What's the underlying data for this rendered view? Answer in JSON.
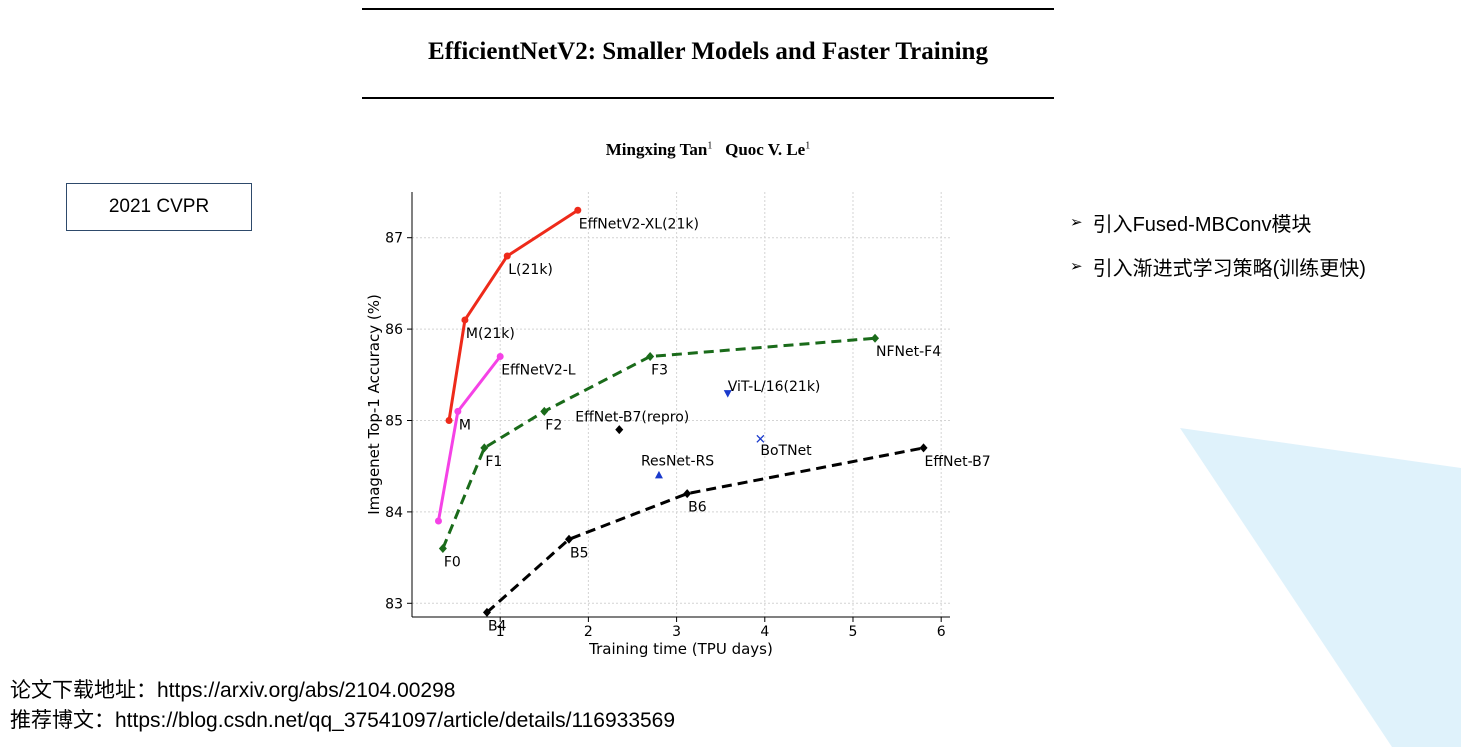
{
  "paper": {
    "title": "EfficientNetV2: Smaller Models and Faster Training",
    "author1": "Mingxing Tan",
    "author1_sup": "1",
    "author2": "Quoc V. Le",
    "author2_sup": "1"
  },
  "venue": "2021 CVPR",
  "bullets": [
    "引入Fused-MBConv模块",
    "引入渐进式学习策略(训练更快)"
  ],
  "bullet_marker": "➢",
  "links": {
    "paper": "论文下载地址：https://arxiv.org/abs/2104.00298",
    "blog": "推荐博文：https://blog.csdn.net/qq_37541097/article/details/116933569"
  },
  "colors": {
    "effnetv2_21k": "#ee2a1a",
    "effnetv2": "#f542e6",
    "nfnet": "#1a6b1a",
    "effnet": "#000000",
    "vit_botnet_resnetrs": "#1a3acc",
    "decoration": "#dff2fb"
  },
  "chart_data": {
    "type": "line",
    "xlabel": "Training time (TPU days)",
    "ylabel": "Imagenet Top-1 Accuracy (%)",
    "xlim": [
      0,
      6.1
    ],
    "ylim": [
      82.85,
      87.5
    ],
    "xticks": [
      1,
      2,
      3,
      4,
      5,
      6
    ],
    "yticks": [
      83,
      84,
      85,
      86,
      87
    ],
    "grid": true,
    "series": [
      {
        "color": "#ee2a1a",
        "line": "solid",
        "marker": "circle",
        "x": [
          0.42,
          0.6,
          1.08,
          1.88
        ],
        "y": [
          85.0,
          86.1,
          86.8,
          87.3
        ],
        "labels": [
          "",
          "M(21k)",
          "L(21k)",
          "EffNetV2-XL(21k)"
        ]
      },
      {
        "color": "#f542e6",
        "line": "solid",
        "marker": "circle",
        "x": [
          0.3,
          0.52,
          1.0
        ],
        "y": [
          83.9,
          85.1,
          85.7
        ],
        "labels": [
          "",
          "M",
          "EffNetV2-L"
        ]
      },
      {
        "color": "#1a6b1a",
        "line": "dashed",
        "marker": "diamond",
        "x": [
          0.35,
          0.82,
          1.5,
          2.7,
          5.25
        ],
        "y": [
          83.6,
          84.7,
          85.1,
          85.7,
          85.9
        ],
        "labels": [
          "F0",
          "F1",
          "F2",
          "F3",
          "NFNet-F4"
        ]
      },
      {
        "color": "#000000",
        "line": "dashed",
        "marker": "diamond",
        "x": [
          0.85,
          1.78,
          3.12,
          5.8
        ],
        "y": [
          82.9,
          83.7,
          84.2,
          84.7
        ],
        "labels": [
          "B4",
          "B5",
          "B6",
          "EffNet-B7"
        ]
      }
    ],
    "points": [
      {
        "label": "EffNet-B7(repro)",
        "x": 2.35,
        "y": 84.9,
        "color": "#000000",
        "marker": "diamond"
      },
      {
        "label": "ViT-L/16(21k)",
        "x": 3.58,
        "y": 85.3,
        "color": "#1a3acc",
        "marker": "triangle-down"
      },
      {
        "label": "BoTNet",
        "x": 3.95,
        "y": 84.8,
        "color": "#1a3acc",
        "marker": "x"
      },
      {
        "label": "ResNet-RS",
        "x": 2.8,
        "y": 84.4,
        "color": "#1a3acc",
        "marker": "triangle-up"
      }
    ]
  }
}
